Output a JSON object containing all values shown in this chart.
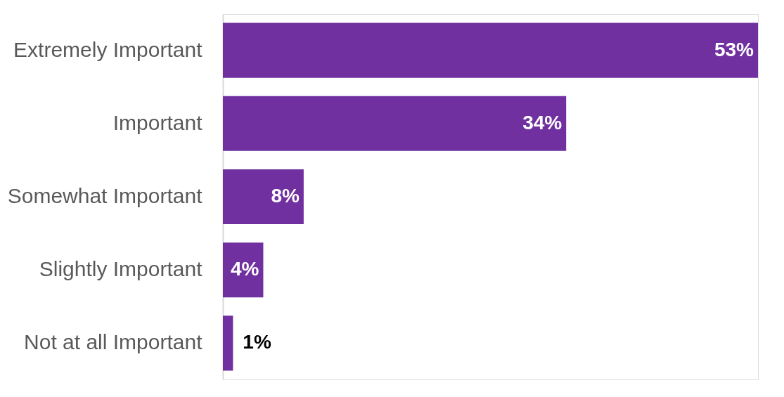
{
  "chart_data": {
    "type": "bar",
    "orientation": "horizontal",
    "categories": [
      "Extremely Important",
      "Important",
      "Somewhat Important",
      "Slightly Important",
      "Not at all Important"
    ],
    "values": [
      53,
      34,
      8,
      4,
      1
    ],
    "value_labels": [
      "53%",
      "34%",
      "8%",
      "4%",
      "1%"
    ],
    "color": "#7030a0",
    "grid": false
  }
}
